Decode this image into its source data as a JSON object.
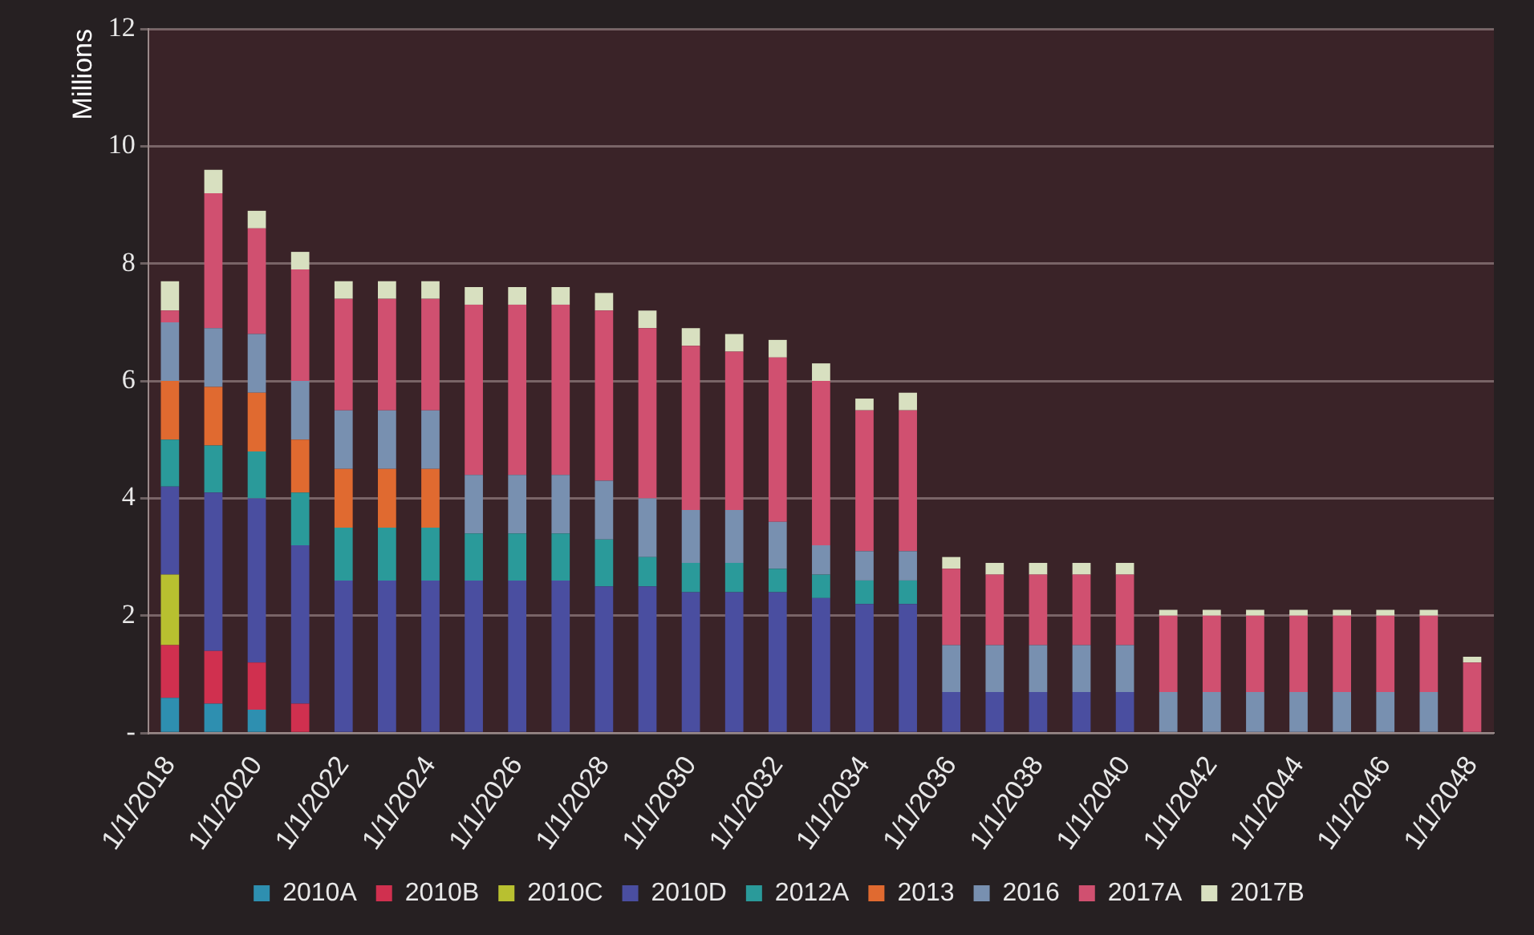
{
  "chart_data": {
    "type": "bar",
    "stacked": true,
    "ylabel": "Millions",
    "categories": [
      "1/1/2018",
      null,
      "1/1/2020",
      null,
      "1/1/2022",
      null,
      "1/1/2024",
      null,
      "1/1/2026",
      null,
      "1/1/2028",
      null,
      "1/1/2030",
      null,
      "1/1/2032",
      null,
      "1/1/2034",
      null,
      "1/1/2036",
      null,
      "1/1/2038",
      null,
      "1/1/2040",
      null,
      "1/1/2042",
      null,
      "1/1/2044",
      null,
      "1/1/2046",
      null,
      "1/1/2048"
    ],
    "series": [
      {
        "name": "2010A",
        "color": "#2e8fb0",
        "values": [
          0.6,
          0.5,
          0.4,
          0,
          0,
          0,
          0,
          0,
          0,
          0,
          0,
          0,
          0,
          0,
          0,
          0,
          0,
          0,
          0,
          0,
          0,
          0,
          0,
          0,
          0,
          0,
          0,
          0,
          0,
          0,
          0
        ]
      },
      {
        "name": "2010B",
        "color": "#d0304f",
        "values": [
          0.9,
          0.9,
          0.8,
          0.5,
          0,
          0,
          0,
          0,
          0,
          0,
          0,
          0,
          0,
          0,
          0,
          0,
          0,
          0,
          0,
          0,
          0,
          0,
          0,
          0,
          0,
          0,
          0,
          0,
          0,
          0,
          0
        ]
      },
      {
        "name": "2010C",
        "color": "#b8c030",
        "values": [
          1.2,
          0,
          0,
          0,
          0,
          0,
          0,
          0,
          0,
          0,
          0,
          0,
          0,
          0,
          0,
          0,
          0,
          0,
          0,
          0,
          0,
          0,
          0,
          0,
          0,
          0,
          0,
          0,
          0,
          0,
          0
        ]
      },
      {
        "name": "2010D",
        "color": "#4a4ea0",
        "values": [
          1.5,
          2.7,
          2.8,
          2.7,
          2.6,
          2.6,
          2.6,
          2.6,
          2.6,
          2.6,
          2.5,
          2.5,
          2.4,
          2.4,
          2.4,
          2.3,
          2.2,
          2.2,
          0.7,
          0.7,
          0.7,
          0.7,
          0.7,
          0,
          0,
          0,
          0,
          0,
          0,
          0,
          0
        ]
      },
      {
        "name": "2012A",
        "color": "#2a9a9a",
        "values": [
          0.8,
          0.8,
          0.8,
          0.9,
          0.9,
          0.9,
          0.9,
          0.8,
          0.8,
          0.8,
          0.8,
          0.5,
          0.5,
          0.5,
          0.4,
          0.4,
          0.4,
          0.4,
          0,
          0,
          0,
          0,
          0,
          0,
          0,
          0,
          0,
          0,
          0,
          0,
          0
        ]
      },
      {
        "name": "2013",
        "color": "#e06a30",
        "values": [
          1.0,
          1.0,
          1.0,
          0.9,
          1.0,
          1.0,
          1.0,
          0,
          0,
          0,
          0,
          0,
          0,
          0,
          0,
          0,
          0,
          0,
          0,
          0,
          0,
          0,
          0,
          0,
          0,
          0,
          0,
          0,
          0,
          0,
          0
        ]
      },
      {
        "name": "2016",
        "color": "#7890b0",
        "values": [
          1.0,
          1.0,
          1.0,
          1.0,
          1.0,
          1.0,
          1.0,
          1.0,
          1.0,
          1.0,
          1.0,
          1.0,
          0.9,
          0.9,
          0.8,
          0.5,
          0.5,
          0.5,
          0.8,
          0.8,
          0.8,
          0.8,
          0.8,
          0.7,
          0.7,
          0.7,
          0.7,
          0.7,
          0.7,
          0.7,
          0
        ]
      },
      {
        "name": "2017A",
        "color": "#d05070",
        "values": [
          0.2,
          2.3,
          1.8,
          1.9,
          1.9,
          1.9,
          1.9,
          2.9,
          2.9,
          2.9,
          2.9,
          2.9,
          2.8,
          2.7,
          2.8,
          2.8,
          2.4,
          2.4,
          1.3,
          1.2,
          1.2,
          1.2,
          1.2,
          1.3,
          1.3,
          1.3,
          1.3,
          1.3,
          1.3,
          1.3,
          1.2
        ]
      },
      {
        "name": "2017B",
        "color": "#d8e0c0",
        "values": [
          0.5,
          0.4,
          0.3,
          0.3,
          0.3,
          0.3,
          0.3,
          0.3,
          0.3,
          0.3,
          0.3,
          0.3,
          0.3,
          0.3,
          0.3,
          0.3,
          0.2,
          0.3,
          0.2,
          0.2,
          0.2,
          0.2,
          0.2,
          0.1,
          0.1,
          0.1,
          0.1,
          0.1,
          0.1,
          0.1,
          0.1
        ]
      }
    ],
    "ylim": [
      0,
      12
    ],
    "yticks": [
      {
        "value": 0,
        "label": "-"
      },
      2,
      4,
      6,
      8,
      10,
      12
    ],
    "grid": "y",
    "legend": "bottom"
  }
}
